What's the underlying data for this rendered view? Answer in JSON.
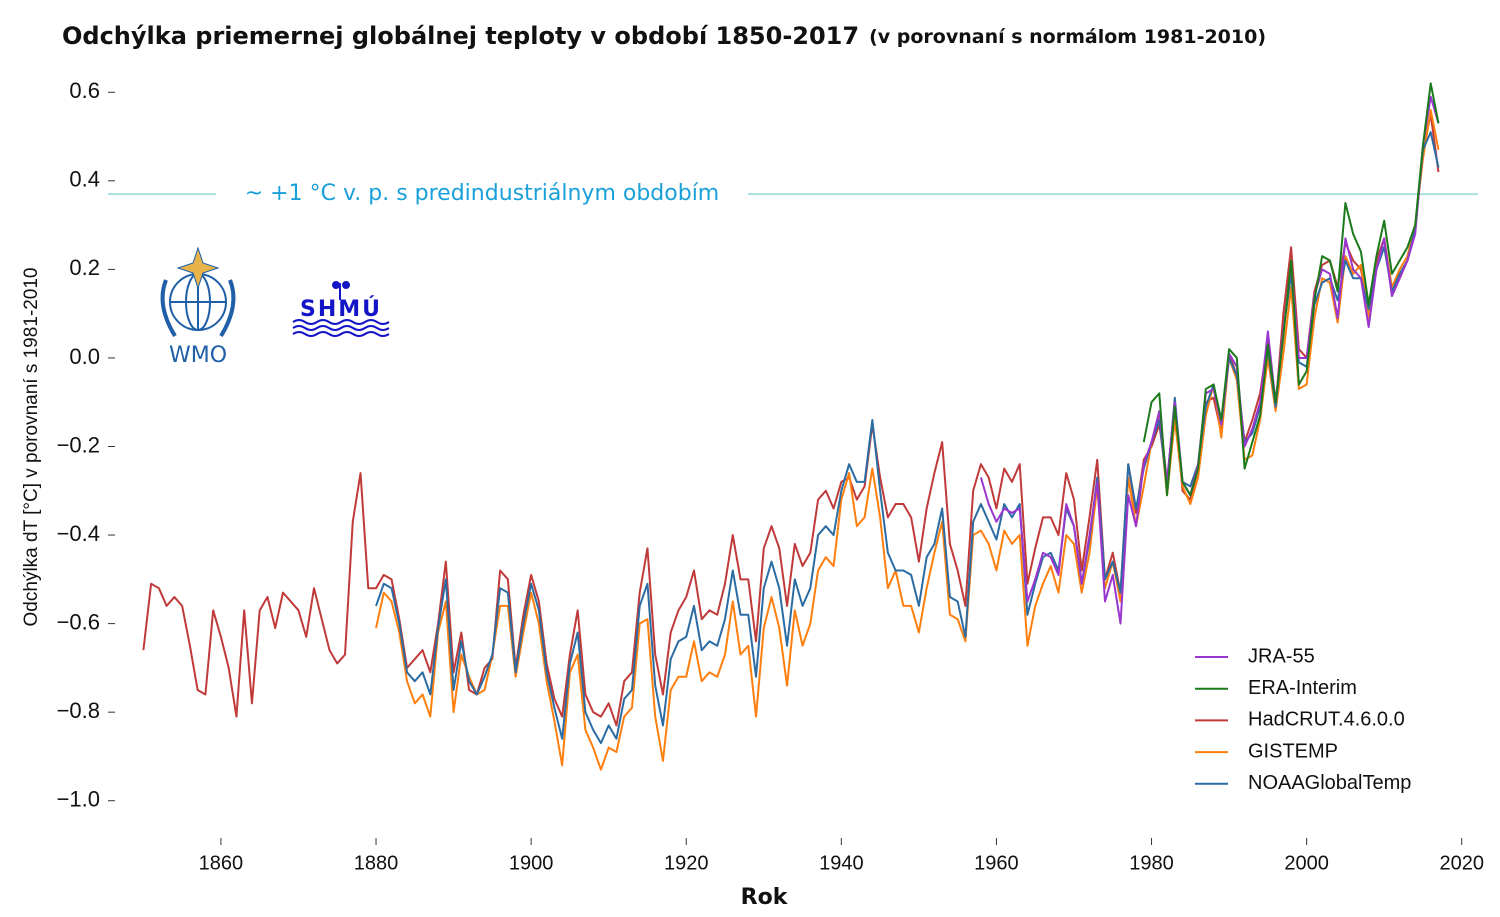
{
  "chart_data": {
    "type": "line",
    "title": "Odchýlka priemernej globálnej teploty v období 1850-2017",
    "subtitle": "(v porovnaní s normálom 1981-2010)",
    "xlabel": "Rok",
    "ylabel": "Odchýlka dT [°C] v porovnaní s 1981-2010",
    "logos": [
      "WMO",
      "SHMÚ"
    ],
    "reference_line": {
      "value": 0.37,
      "label": "~ +1 °C v. p. s predindustriálnym obdobím",
      "color": "#a9dfe3",
      "label_color": "#1aa0d8"
    },
    "xlim": [
      1845,
      2023
    ],
    "ylim": [
      -1.1,
      0.7
    ],
    "xticks": [
      1860,
      1880,
      1900,
      1920,
      1940,
      1960,
      1980,
      2000,
      2020
    ],
    "yticks": [
      0.6,
      0.4,
      0.2,
      {
        "value": 0,
        "label": "0.0"
      },
      {
        "value": -0.2,
        "label": "−0.2"
      },
      {
        "value": -0.4,
        "label": "−0.4"
      },
      {
        "value": -0.6,
        "label": "−0.6"
      },
      {
        "value": -0.8,
        "label": "−0.8"
      },
      {
        "value": -1.0,
        "label": "−1.0"
      }
    ],
    "grid": false,
    "legend": "lower right",
    "x": [
      1850,
      1851,
      1852,
      1853,
      1854,
      1855,
      1856,
      1857,
      1858,
      1859,
      1860,
      1861,
      1862,
      1863,
      1864,
      1865,
      1866,
      1867,
      1868,
      1869,
      1870,
      1871,
      1872,
      1873,
      1874,
      1875,
      1876,
      1877,
      1878,
      1879,
      1880,
      1881,
      1882,
      1883,
      1884,
      1885,
      1886,
      1887,
      1888,
      1889,
      1890,
      1891,
      1892,
      1893,
      1894,
      1895,
      1896,
      1897,
      1898,
      1899,
      1900,
      1901,
      1902,
      1903,
      1904,
      1905,
      1906,
      1907,
      1908,
      1909,
      1910,
      1911,
      1912,
      1913,
      1914,
      1915,
      1916,
      1917,
      1918,
      1919,
      1920,
      1921,
      1922,
      1923,
      1924,
      1925,
      1926,
      1927,
      1928,
      1929,
      1930,
      1931,
      1932,
      1933,
      1934,
      1935,
      1936,
      1937,
      1938,
      1939,
      1940,
      1941,
      1942,
      1943,
      1944,
      1945,
      1946,
      1947,
      1948,
      1949,
      1950,
      1951,
      1952,
      1953,
      1954,
      1955,
      1956,
      1957,
      1958,
      1959,
      1960,
      1961,
      1962,
      1963,
      1964,
      1965,
      1966,
      1967,
      1968,
      1969,
      1970,
      1971,
      1972,
      1973,
      1974,
      1975,
      1976,
      1977,
      1978,
      1979,
      1980,
      1981,
      1982,
      1983,
      1984,
      1985,
      1986,
      1987,
      1988,
      1989,
      1990,
      1991,
      1992,
      1993,
      1994,
      1995,
      1996,
      1997,
      1998,
      1999,
      2000,
      2001,
      2002,
      2003,
      2004,
      2005,
      2006,
      2007,
      2008,
      2009,
      2010,
      2011,
      2012,
      2013,
      2014,
      2015,
      2016,
      2017
    ],
    "series": [
      {
        "name": "JRA-55",
        "color": "#9b35cf",
        "values": [
          null,
          null,
          null,
          null,
          null,
          null,
          null,
          null,
          null,
          null,
          null,
          null,
          null,
          null,
          null,
          null,
          null,
          null,
          null,
          null,
          null,
          null,
          null,
          null,
          null,
          null,
          null,
          null,
          null,
          null,
          null,
          null,
          null,
          null,
          null,
          null,
          null,
          null,
          null,
          null,
          null,
          null,
          null,
          null,
          null,
          null,
          null,
          null,
          null,
          null,
          null,
          null,
          null,
          null,
          null,
          null,
          null,
          null,
          null,
          null,
          null,
          null,
          null,
          null,
          null,
          null,
          null,
          null,
          null,
          null,
          null,
          null,
          null,
          null,
          null,
          null,
          null,
          null,
          null,
          null,
          null,
          null,
          null,
          null,
          null,
          null,
          null,
          null,
          null,
          null,
          null,
          null,
          null,
          null,
          null,
          null,
          null,
          null,
          null,
          null,
          null,
          null,
          null,
          null,
          null,
          null,
          null,
          null,
          -0.27,
          -0.33,
          -0.37,
          -0.34,
          -0.35,
          -0.34,
          -0.55,
          -0.5,
          -0.44,
          -0.45,
          -0.49,
          -0.33,
          -0.38,
          -0.51,
          -0.4,
          -0.28,
          -0.55,
          -0.49,
          -0.6,
          -0.31,
          -0.38,
          -0.24,
          -0.19,
          -0.12,
          -0.28,
          -0.1,
          -0.28,
          -0.31,
          -0.24,
          -0.08,
          -0.07,
          -0.15,
          0.01,
          -0.02,
          -0.2,
          -0.16,
          -0.1,
          0.06,
          -0.1,
          0.06,
          0.21,
          0.0,
          0.0,
          0.14,
          0.2,
          0.19,
          0.09,
          0.27,
          0.2,
          0.18,
          0.07,
          0.2,
          0.27,
          0.14,
          0.18,
          0.22,
          0.28,
          0.48,
          0.59,
          0.53
        ]
      },
      {
        "name": "ERA-Interim",
        "color": "#1b7a1b",
        "values": [
          null,
          null,
          null,
          null,
          null,
          null,
          null,
          null,
          null,
          null,
          null,
          null,
          null,
          null,
          null,
          null,
          null,
          null,
          null,
          null,
          null,
          null,
          null,
          null,
          null,
          null,
          null,
          null,
          null,
          null,
          null,
          null,
          null,
          null,
          null,
          null,
          null,
          null,
          null,
          null,
          null,
          null,
          null,
          null,
          null,
          null,
          null,
          null,
          null,
          null,
          null,
          null,
          null,
          null,
          null,
          null,
          null,
          null,
          null,
          null,
          null,
          null,
          null,
          null,
          null,
          null,
          null,
          null,
          null,
          null,
          null,
          null,
          null,
          null,
          null,
          null,
          null,
          null,
          null,
          null,
          null,
          null,
          null,
          null,
          null,
          null,
          null,
          null,
          null,
          null,
          null,
          null,
          null,
          null,
          null,
          null,
          null,
          null,
          null,
          null,
          null,
          null,
          null,
          null,
          null,
          null,
          null,
          null,
          null,
          null,
          null,
          null,
          null,
          null,
          null,
          null,
          null,
          null,
          null,
          null,
          null,
          null,
          null,
          null,
          null,
          null,
          null,
          null,
          null,
          -0.19,
          -0.1,
          -0.08,
          -0.31,
          -0.11,
          -0.28,
          -0.31,
          -0.25,
          -0.07,
          -0.06,
          -0.14,
          0.02,
          0.0,
          -0.25,
          -0.19,
          -0.13,
          0.03,
          -0.1,
          0.05,
          0.22,
          -0.06,
          -0.03,
          0.13,
          0.23,
          0.22,
          0.15,
          0.35,
          0.28,
          0.24,
          0.12,
          0.23,
          0.31,
          0.19,
          0.22,
          0.25,
          0.3,
          0.48,
          0.62,
          0.53
        ]
      },
      {
        "name": "HadCRUT.4.6.0.0",
        "color": "#c03a3a",
        "values": [
          -0.66,
          -0.51,
          -0.52,
          -0.56,
          -0.54,
          -0.56,
          -0.65,
          -0.75,
          -0.76,
          -0.57,
          -0.63,
          -0.7,
          -0.81,
          -0.57,
          -0.78,
          -0.57,
          -0.54,
          -0.61,
          -0.53,
          -0.55,
          -0.57,
          -0.63,
          -0.52,
          -0.59,
          -0.66,
          -0.69,
          -0.67,
          -0.37,
          -0.26,
          -0.52,
          -0.52,
          -0.49,
          -0.5,
          -0.59,
          -0.7,
          -0.68,
          -0.66,
          -0.71,
          -0.6,
          -0.46,
          -0.71,
          -0.62,
          -0.75,
          -0.76,
          -0.7,
          -0.68,
          -0.48,
          -0.5,
          -0.7,
          -0.58,
          -0.49,
          -0.55,
          -0.69,
          -0.77,
          -0.81,
          -0.67,
          -0.57,
          -0.76,
          -0.8,
          -0.81,
          -0.78,
          -0.83,
          -0.73,
          -0.71,
          -0.53,
          -0.43,
          -0.67,
          -0.76,
          -0.62,
          -0.57,
          -0.54,
          -0.48,
          -0.59,
          -0.57,
          -0.58,
          -0.51,
          -0.4,
          -0.5,
          -0.5,
          -0.64,
          -0.43,
          -0.38,
          -0.43,
          -0.56,
          -0.42,
          -0.47,
          -0.44,
          -0.32,
          -0.3,
          -0.34,
          -0.28,
          -0.27,
          -0.32,
          -0.29,
          -0.15,
          -0.27,
          -0.36,
          -0.33,
          -0.33,
          -0.36,
          -0.46,
          -0.34,
          -0.26,
          -0.19,
          -0.42,
          -0.48,
          -0.56,
          -0.3,
          -0.24,
          -0.27,
          -0.34,
          -0.25,
          -0.28,
          -0.24,
          -0.51,
          -0.43,
          -0.36,
          -0.36,
          -0.4,
          -0.26,
          -0.32,
          -0.48,
          -0.36,
          -0.23,
          -0.5,
          -0.44,
          -0.53,
          -0.24,
          -0.35,
          -0.23,
          -0.2,
          -0.15,
          -0.28,
          -0.1,
          -0.3,
          -0.32,
          -0.25,
          -0.1,
          -0.09,
          -0.17,
          0.01,
          -0.04,
          -0.19,
          -0.14,
          -0.08,
          0.04,
          -0.11,
          0.1,
          0.25,
          0.02,
          0.0,
          0.15,
          0.21,
          0.22,
          0.16,
          0.26,
          0.22,
          0.2,
          0.11,
          0.22,
          0.27,
          0.14,
          0.18,
          0.22,
          0.29,
          0.47,
          0.55,
          0.42
        ]
      },
      {
        "name": "GISTEMP",
        "color": "#ff7f0e",
        "values": [
          null,
          null,
          null,
          null,
          null,
          null,
          null,
          null,
          null,
          null,
          null,
          null,
          null,
          null,
          null,
          null,
          null,
          null,
          null,
          null,
          null,
          null,
          null,
          null,
          null,
          null,
          null,
          null,
          null,
          null,
          -0.61,
          -0.53,
          -0.55,
          -0.62,
          -0.73,
          -0.78,
          -0.76,
          -0.81,
          -0.62,
          -0.55,
          -0.8,
          -0.67,
          -0.72,
          -0.76,
          -0.75,
          -0.67,
          -0.56,
          -0.56,
          -0.72,
          -0.62,
          -0.53,
          -0.6,
          -0.73,
          -0.82,
          -0.92,
          -0.71,
          -0.67,
          -0.84,
          -0.88,
          -0.93,
          -0.88,
          -0.89,
          -0.81,
          -0.79,
          -0.6,
          -0.59,
          -0.81,
          -0.91,
          -0.75,
          -0.72,
          -0.72,
          -0.64,
          -0.73,
          -0.71,
          -0.72,
          -0.67,
          -0.55,
          -0.67,
          -0.65,
          -0.81,
          -0.61,
          -0.54,
          -0.61,
          -0.74,
          -0.57,
          -0.65,
          -0.6,
          -0.48,
          -0.45,
          -0.47,
          -0.32,
          -0.26,
          -0.38,
          -0.36,
          -0.25,
          -0.36,
          -0.52,
          -0.48,
          -0.56,
          -0.56,
          -0.62,
          -0.52,
          -0.44,
          -0.37,
          -0.58,
          -0.59,
          -0.64,
          -0.4,
          -0.39,
          -0.42,
          -0.48,
          -0.39,
          -0.42,
          -0.4,
          -0.65,
          -0.56,
          -0.51,
          -0.47,
          -0.53,
          -0.4,
          -0.42,
          -0.53,
          -0.44,
          -0.29,
          -0.52,
          -0.46,
          -0.55,
          -0.27,
          -0.38,
          -0.29,
          -0.19,
          -0.13,
          -0.31,
          -0.14,
          -0.29,
          -0.33,
          -0.27,
          -0.13,
          -0.06,
          -0.18,
          0.0,
          -0.05,
          -0.23,
          -0.22,
          -0.14,
          0.0,
          -0.12,
          0.01,
          0.16,
          -0.07,
          -0.06,
          0.09,
          0.18,
          0.17,
          0.08,
          0.23,
          0.19,
          0.21,
          0.09,
          0.2,
          0.27,
          0.16,
          0.2,
          0.23,
          0.3,
          0.45,
          0.56,
          0.47
        ]
      },
      {
        "name": "NOAAGlobalTemp",
        "color": "#2b6ca3",
        "values": [
          null,
          null,
          null,
          null,
          null,
          null,
          null,
          null,
          null,
          null,
          null,
          null,
          null,
          null,
          null,
          null,
          null,
          null,
          null,
          null,
          null,
          null,
          null,
          null,
          null,
          null,
          null,
          null,
          null,
          null,
          -0.56,
          -0.51,
          -0.52,
          -0.6,
          -0.71,
          -0.73,
          -0.71,
          -0.76,
          -0.61,
          -0.5,
          -0.75,
          -0.64,
          -0.73,
          -0.76,
          -0.72,
          -0.67,
          -0.52,
          -0.53,
          -0.71,
          -0.6,
          -0.51,
          -0.57,
          -0.71,
          -0.79,
          -0.86,
          -0.69,
          -0.62,
          -0.8,
          -0.84,
          -0.87,
          -0.83,
          -0.86,
          -0.77,
          -0.75,
          -0.56,
          -0.51,
          -0.74,
          -0.83,
          -0.68,
          -0.64,
          -0.63,
          -0.56,
          -0.66,
          -0.64,
          -0.65,
          -0.59,
          -0.48,
          -0.58,
          -0.58,
          -0.72,
          -0.52,
          -0.46,
          -0.52,
          -0.65,
          -0.5,
          -0.56,
          -0.52,
          -0.4,
          -0.38,
          -0.4,
          -0.3,
          -0.24,
          -0.28,
          -0.28,
          -0.14,
          -0.3,
          -0.44,
          -0.48,
          -0.48,
          -0.49,
          -0.56,
          -0.45,
          -0.42,
          -0.34,
          -0.54,
          -0.55,
          -0.63,
          -0.37,
          -0.33,
          -0.37,
          -0.41,
          -0.33,
          -0.36,
          -0.33,
          -0.58,
          -0.51,
          -0.45,
          -0.44,
          -0.48,
          -0.34,
          -0.38,
          -0.51,
          -0.41,
          -0.27,
          -0.5,
          -0.46,
          -0.53,
          -0.24,
          -0.34,
          -0.25,
          -0.19,
          -0.14,
          -0.29,
          -0.09,
          -0.28,
          -0.29,
          -0.24,
          -0.11,
          -0.06,
          -0.15,
          0.0,
          -0.04,
          -0.19,
          -0.17,
          -0.11,
          0.02,
          -0.11,
          0.06,
          0.19,
          -0.01,
          -0.02,
          0.12,
          0.17,
          0.18,
          0.13,
          0.22,
          0.18,
          0.18,
          0.11,
          0.2,
          0.25,
          0.15,
          0.19,
          0.22,
          0.29,
          0.47,
          0.51,
          0.43
        ]
      }
    ]
  }
}
